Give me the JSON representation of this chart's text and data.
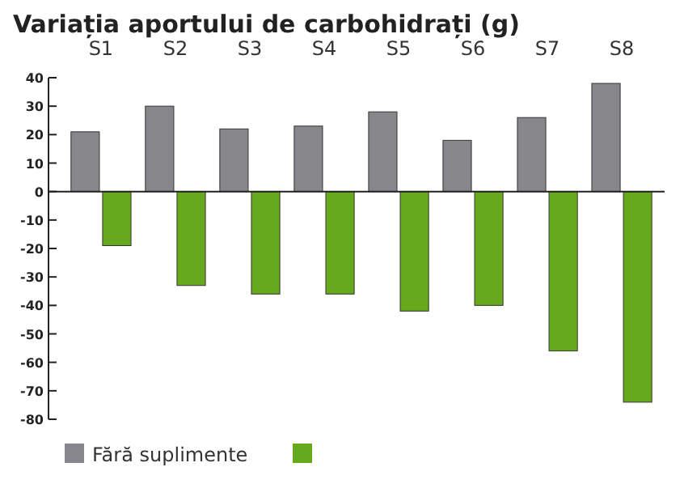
{
  "chart_data": {
    "type": "bar",
    "title": "Variația aportului de carbohidrați (g)",
    "categories": [
      "S1",
      "S2",
      "S3",
      "S4",
      "S5",
      "S6",
      "S7",
      "S8"
    ],
    "series": [
      {
        "name": "Fără suplimente",
        "color": "#87868b",
        "values": [
          21,
          30,
          22,
          23,
          28,
          18,
          26,
          38
        ]
      },
      {
        "color": "#67a91c",
        "values": [
          -19,
          -33,
          -36,
          -36,
          -42,
          -40,
          -56,
          -74
        ]
      }
    ],
    "ylim": [
      -80,
      40
    ],
    "yticks": [
      -80,
      -70,
      -60,
      -50,
      -40,
      -30,
      -20,
      -10,
      0,
      10,
      20,
      30,
      40
    ],
    "legend": "bottom"
  }
}
